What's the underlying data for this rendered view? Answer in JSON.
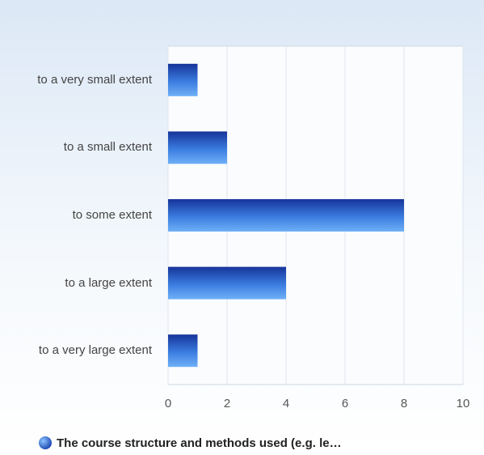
{
  "chart_data": {
    "type": "bar",
    "orientation": "horizontal",
    "categories": [
      "to a very small extent",
      "to a small extent",
      "to some extent",
      "to a large extent",
      "to a very large extent"
    ],
    "series": [
      {
        "name": "The course structure and methods used (e.g. le…",
        "color": "#2f6fd6",
        "values": [
          1,
          2,
          8,
          4,
          1
        ]
      }
    ],
    "xlim": [
      0,
      10
    ],
    "xticks": [
      0,
      2,
      4,
      6,
      8,
      10
    ],
    "grid": true,
    "legend": "bottom"
  }
}
